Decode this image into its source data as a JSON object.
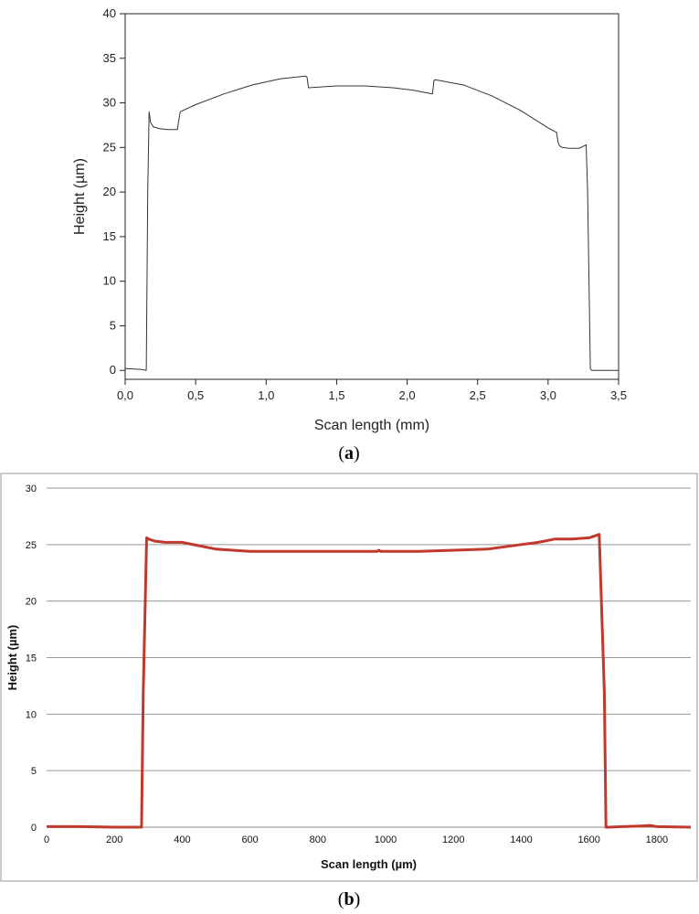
{
  "chart_data": [
    {
      "type": "line",
      "panel_label": "a",
      "xlabel": "Scan length (mm)",
      "ylabel": "Height (µm)",
      "xlim": [
        0.0,
        3.5
      ],
      "ylim": [
        -1,
        40
      ],
      "xticks": [
        "0,0",
        "0,5",
        "1,0",
        "1,5",
        "2,0",
        "2,5",
        "3,0",
        "3,5"
      ],
      "xtick_values": [
        0.0,
        0.5,
        1.0,
        1.5,
        2.0,
        2.5,
        3.0,
        3.5
      ],
      "yticks": [
        "0",
        "5",
        "10",
        "15",
        "20",
        "25",
        "30",
        "35",
        "40"
      ],
      "ytick_values": [
        0,
        5,
        10,
        15,
        20,
        25,
        30,
        35,
        40
      ],
      "grid": false,
      "line_color": "#333333",
      "series": [
        {
          "x": [
            0.0,
            0.12,
            0.15,
            0.16,
            0.17,
            0.18,
            0.2,
            0.25,
            0.3,
            0.37,
            0.38,
            0.39,
            0.5,
            0.7,
            0.9,
            1.1,
            1.28,
            1.29,
            1.3,
            1.5,
            1.7,
            1.9,
            2.05,
            2.18,
            2.19,
            2.2,
            2.4,
            2.6,
            2.8,
            3.0,
            3.06,
            3.07,
            3.08,
            3.1,
            3.15,
            3.22,
            3.27,
            3.28,
            3.3,
            3.31,
            3.4,
            3.5
          ],
          "y": [
            0.2,
            0.1,
            0.0,
            20.0,
            29.0,
            27.8,
            27.3,
            27.1,
            27.0,
            27.0,
            28.0,
            29.0,
            29.8,
            31.0,
            32.0,
            32.7,
            33.0,
            32.9,
            31.7,
            31.9,
            31.9,
            31.7,
            31.4,
            31.0,
            32.5,
            32.6,
            32.0,
            30.8,
            29.2,
            27.2,
            26.7,
            25.6,
            25.2,
            25.0,
            24.9,
            24.9,
            25.3,
            20.0,
            0.2,
            0.0,
            0.0,
            0.0
          ]
        }
      ]
    },
    {
      "type": "line",
      "panel_label": "b",
      "xlabel": "Scan length (µm)",
      "ylabel": "Height (µm)",
      "xlim": [
        0,
        1900
      ],
      "ylim": [
        0,
        30
      ],
      "xticks": [
        "0",
        "200",
        "400",
        "600",
        "800",
        "1000",
        "1200",
        "1400",
        "1600",
        "1800"
      ],
      "xtick_values": [
        0,
        200,
        400,
        600,
        800,
        1000,
        1200,
        1400,
        1600,
        1800
      ],
      "yticks": [
        "0",
        "5",
        "10",
        "15",
        "20",
        "25",
        "30"
      ],
      "ytick_values": [
        0,
        5,
        10,
        15,
        20,
        25,
        30
      ],
      "grid": true,
      "line_color": "#c0392b",
      "series": [
        {
          "x": [
            0,
            100,
            200,
            280,
            285,
            295,
            300,
            320,
            350,
            400,
            450,
            500,
            600,
            700,
            800,
            900,
            975,
            980,
            985,
            1000,
            1100,
            1200,
            1300,
            1400,
            1450,
            1500,
            1550,
            1600,
            1630,
            1645,
            1650,
            1660,
            1700,
            1750,
            1780,
            1800,
            1900
          ],
          "y": [
            0.05,
            0.05,
            0.0,
            0.0,
            12.0,
            25.6,
            25.5,
            25.3,
            25.2,
            25.2,
            24.9,
            24.6,
            24.4,
            24.4,
            24.4,
            24.4,
            24.4,
            24.5,
            24.4,
            24.4,
            24.4,
            24.5,
            24.6,
            25.0,
            25.2,
            25.5,
            25.5,
            25.6,
            25.9,
            12.0,
            0.0,
            0.0,
            0.05,
            0.1,
            0.15,
            0.05,
            0.0
          ]
        }
      ]
    }
  ]
}
